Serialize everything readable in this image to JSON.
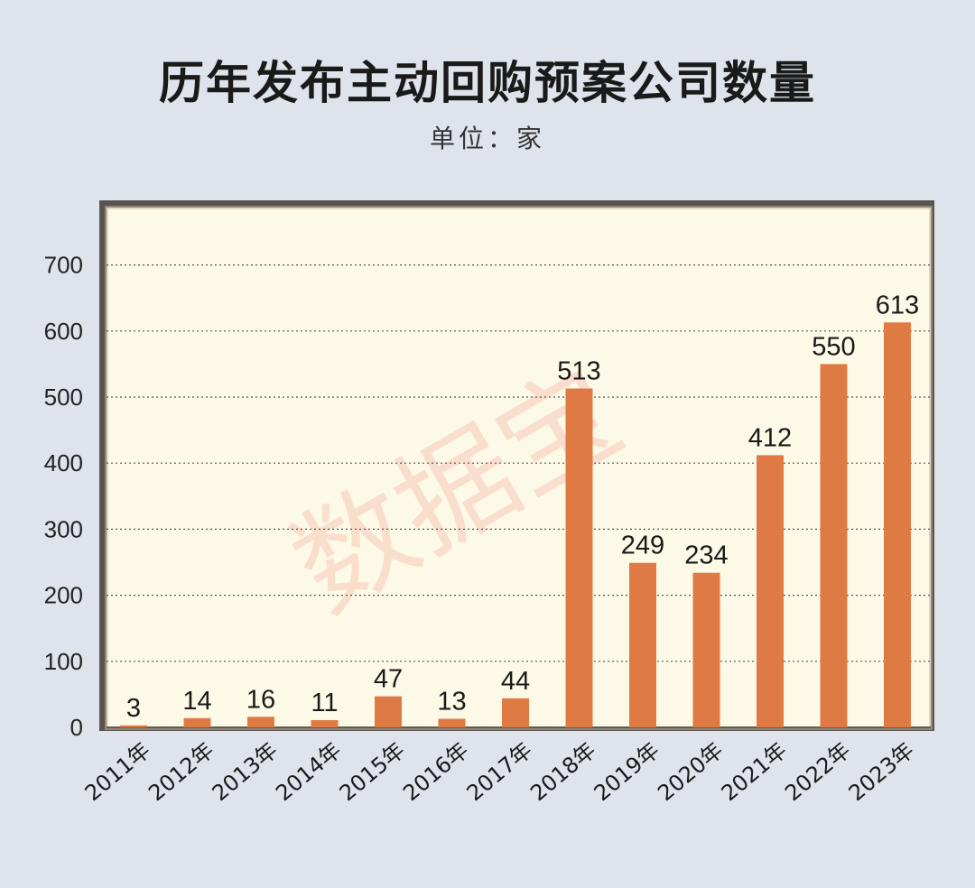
{
  "title": "历年发布主动回购预案公司数量",
  "subtitle": "单位：家",
  "watermark": "数据宝",
  "colors": {
    "bar": "#e07a44",
    "plot_bg": "#fdf9e7",
    "page_bg": "#dfe4ec",
    "frame": "#5a5450",
    "grid": "#555555",
    "watermark": "#f6c9bb"
  },
  "chart_data": {
    "type": "bar",
    "categories": [
      "2011年",
      "2012年",
      "2013年",
      "2014年",
      "2015年",
      "2016年",
      "2017年",
      "2018年",
      "2019年",
      "2020年",
      "2021年",
      "2022年",
      "2023年"
    ],
    "values": [
      3,
      14,
      16,
      11,
      47,
      13,
      44,
      513,
      249,
      234,
      412,
      550,
      613
    ],
    "yticks": [
      0,
      100,
      200,
      300,
      400,
      500,
      600,
      700
    ],
    "ylim": [
      0,
      800
    ],
    "grid": true,
    "grid_style": "dotted",
    "data_labels": true
  }
}
